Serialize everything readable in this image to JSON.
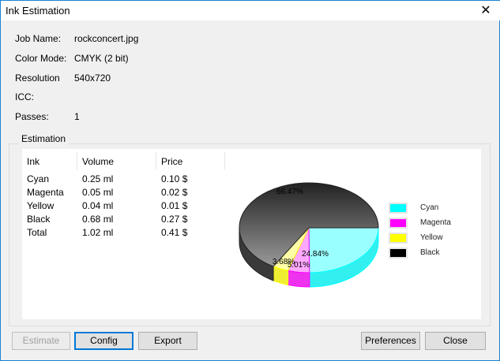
{
  "window": {
    "title": "Ink Estimation",
    "close_icon": "close-icon"
  },
  "info": [
    {
      "label": "Job Name:",
      "value": "rockconcert.jpg"
    },
    {
      "label": "Color Mode:",
      "value": "CMYK (2 bit)"
    },
    {
      "label": "Resolution",
      "value": "540x720"
    },
    {
      "label": "ICC:",
      "value": ""
    },
    {
      "label": "Passes:",
      "value": "1"
    }
  ],
  "estimation": {
    "title": "Estimation",
    "columns": [
      "Ink",
      "Volume",
      "Price"
    ],
    "rows": [
      [
        "Cyan",
        "0.25 ml",
        "0.10 $"
      ],
      [
        "Magenta",
        "0.05 ml",
        "0.02 $"
      ],
      [
        "Yellow",
        "0.04 ml",
        "0.01 $"
      ],
      [
        "Black",
        "0.68 ml",
        "0.27 $"
      ],
      [
        "Total",
        "1.02 ml",
        "0.41 $"
      ]
    ]
  },
  "chart_data": {
    "type": "pie",
    "categories": [
      "Cyan",
      "Magenta",
      "Yellow",
      "Black"
    ],
    "values": [
      24.84,
      5.01,
      3.68,
      66.47
    ],
    "labels": [
      "24.84%",
      "5.01%",
      "3.68%",
      "66.47%"
    ],
    "colors": [
      "#00ffff",
      "#ff00ff",
      "#ffff00",
      "#000000"
    ],
    "legend": "right"
  },
  "buttons": {
    "estimate": "Estimate",
    "config": "Config",
    "export": "Export",
    "preferences": "Preferences",
    "close": "Close"
  }
}
